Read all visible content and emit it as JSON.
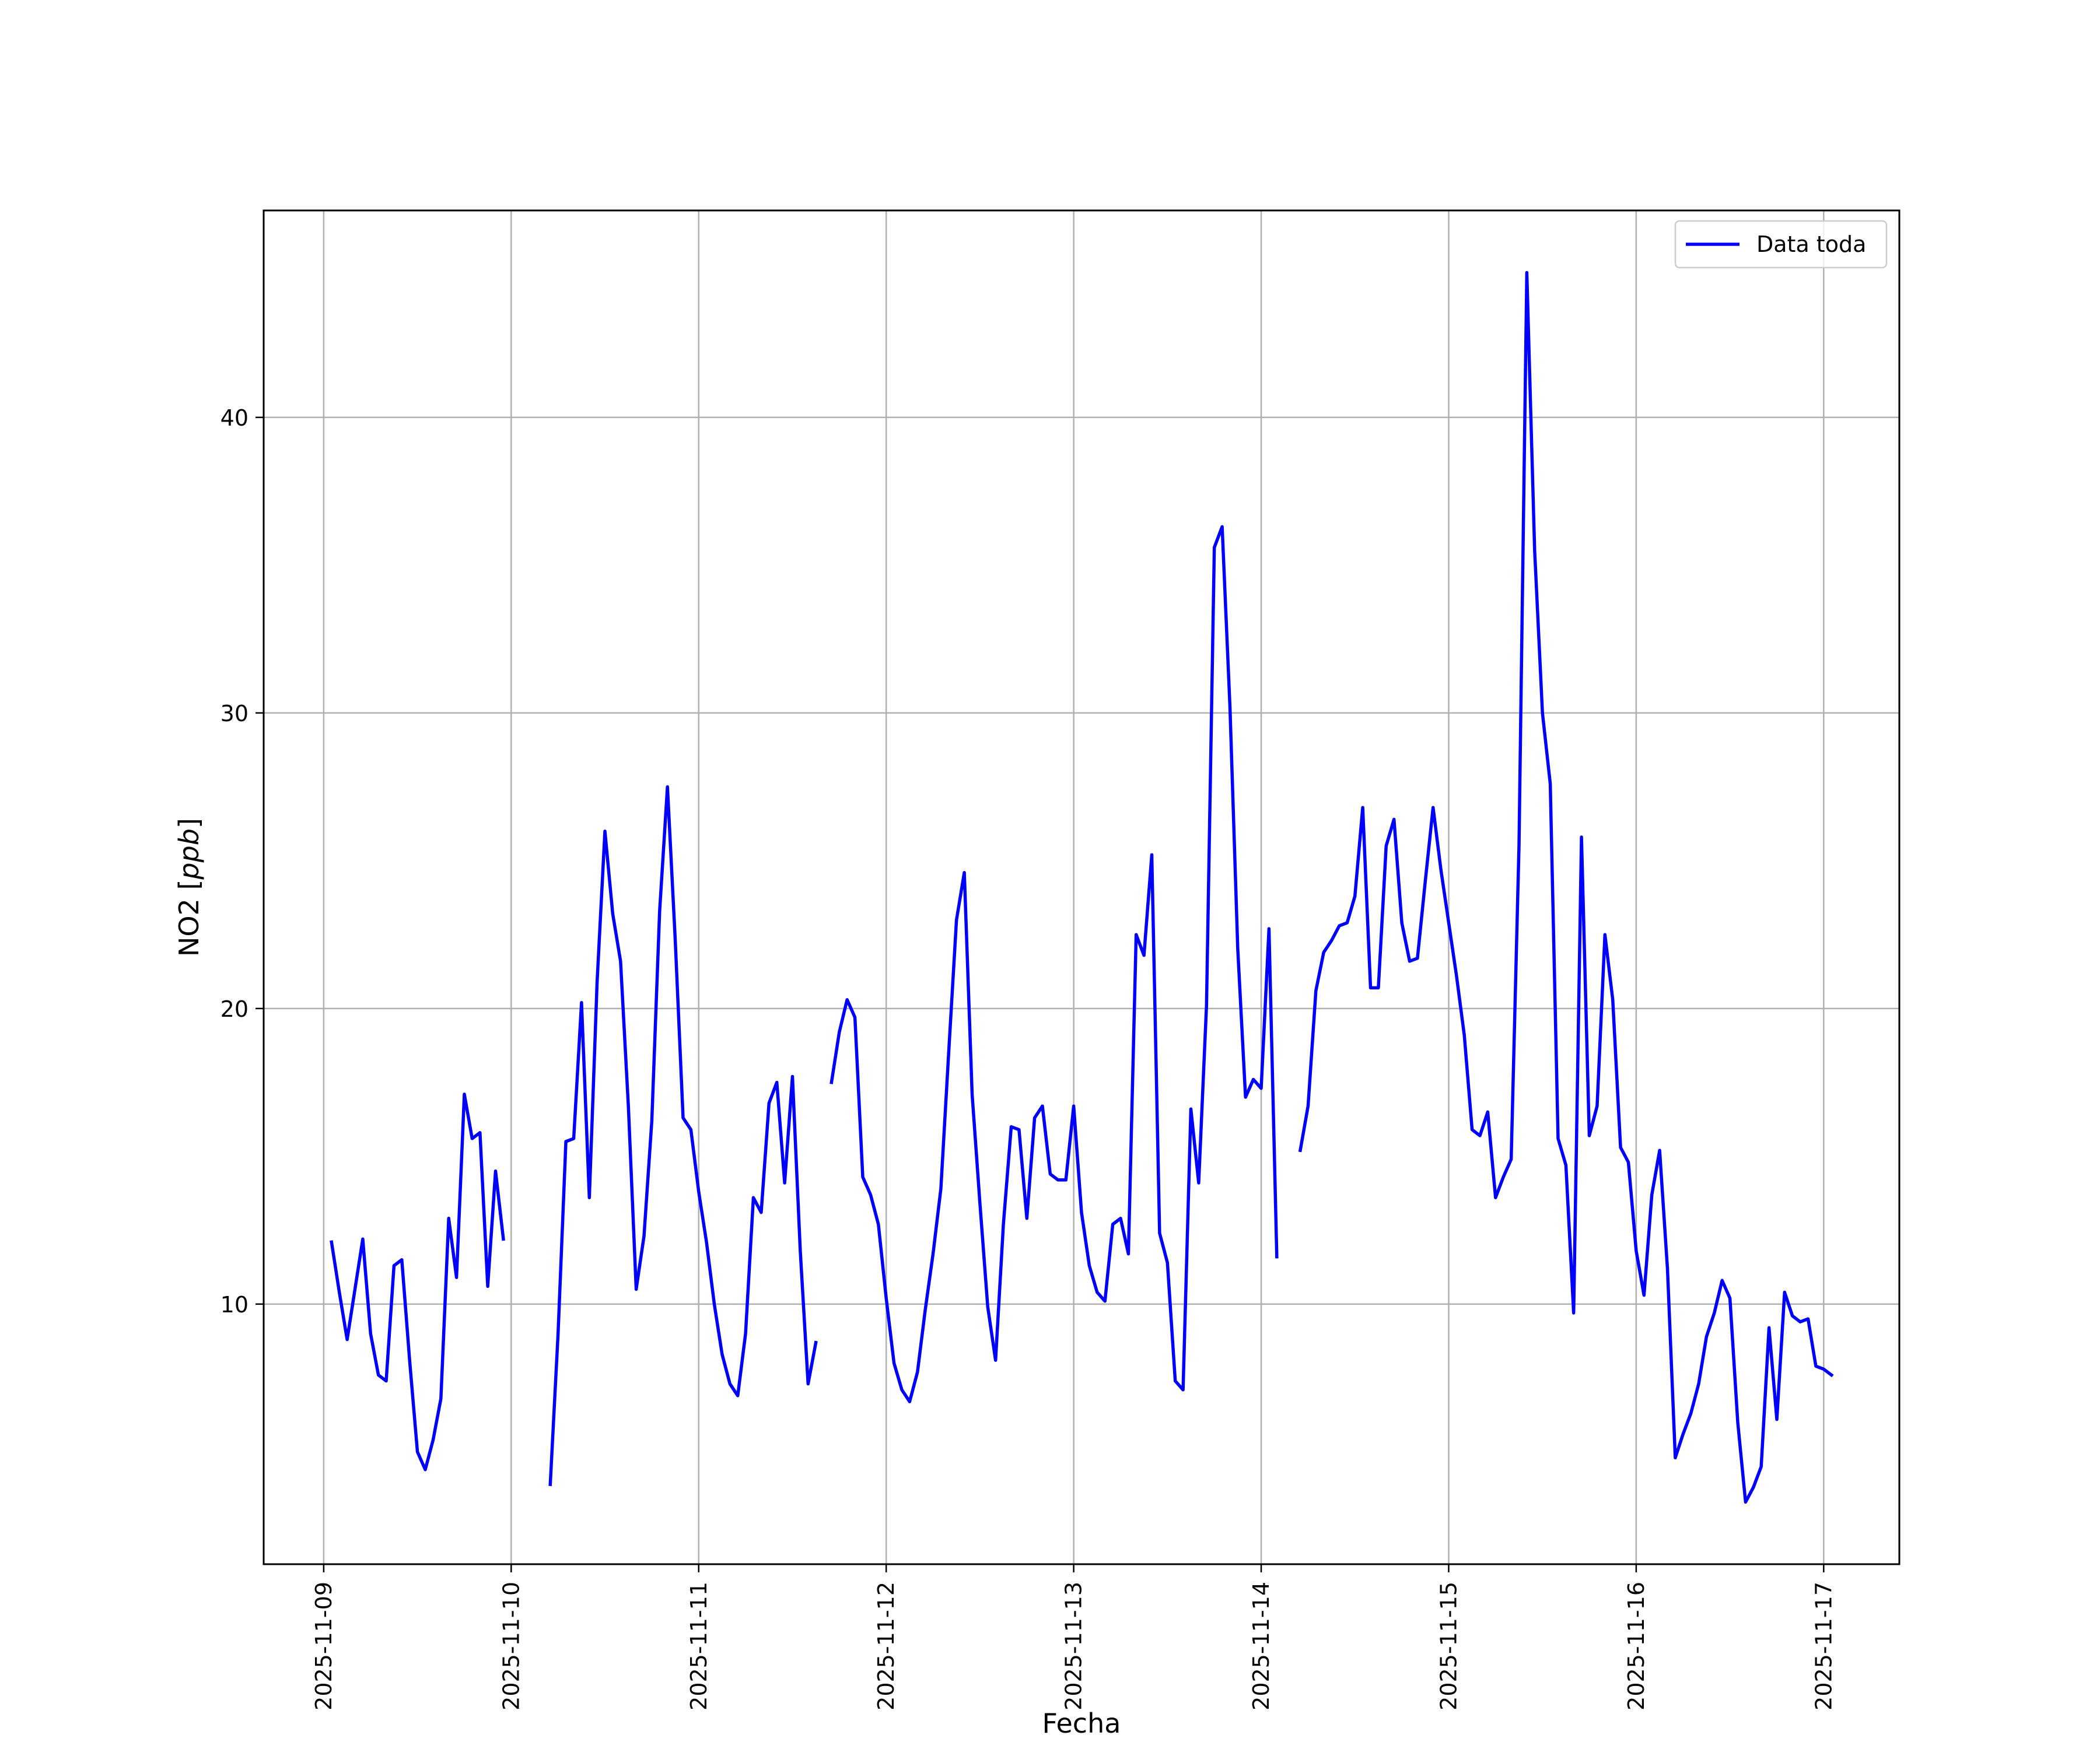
{
  "chart_data": {
    "type": "line",
    "title": "",
    "xlabel": "Fecha",
    "ylabel": "NO2 [ppb]",
    "ylabel_parts": {
      "plain": "NO2 [",
      "italic": "ppb",
      "close": "]"
    },
    "x_ticks": [
      "2025-11-09",
      "2025-11-10",
      "2025-11-11",
      "2025-11-12",
      "2025-11-13",
      "2025-11-14",
      "2025-11-15",
      "2025-11-16",
      "2025-11-17"
    ],
    "y_ticks": [
      10,
      20,
      30,
      40
    ],
    "xlim": [
      "2025-11-08 16:19",
      "2025-11-17 09:41"
    ],
    "ylim": [
      1.2,
      47
    ],
    "grid": true,
    "legend_position": "upper right",
    "colors": {
      "series": "#0000ff",
      "grid": "#b0b0b0",
      "axes": "#000000"
    },
    "series": [
      {
        "name": "Data toda",
        "segments": [
          [
            [
              "2025-11-09 01:00",
              12.1
            ],
            [
              "2025-11-09 02:00",
              10.4
            ],
            [
              "2025-11-09 03:00",
              8.8
            ],
            [
              "2025-11-09 04:00",
              10.5
            ],
            [
              "2025-11-09 05:00",
              12.2
            ],
            [
              "2025-11-09 06:00",
              9.0
            ],
            [
              "2025-11-09 07:00",
              7.6
            ],
            [
              "2025-11-09 08:00",
              7.4
            ],
            [
              "2025-11-09 09:00",
              11.3
            ],
            [
              "2025-11-09 10:00",
              11.5
            ],
            [
              "2025-11-09 11:00",
              8.1
            ],
            [
              "2025-11-09 12:00",
              5.0
            ],
            [
              "2025-11-09 13:00",
              4.4
            ],
            [
              "2025-11-09 14:00",
              5.4
            ],
            [
              "2025-11-09 15:00",
              6.8
            ],
            [
              "2025-11-09 16:00",
              12.9
            ],
            [
              "2025-11-09 17:00",
              10.9
            ],
            [
              "2025-11-09 18:00",
              17.1
            ],
            [
              "2025-11-09 19:00",
              15.6
            ],
            [
              "2025-11-09 20:00",
              15.8
            ],
            [
              "2025-11-09 21:00",
              10.6
            ],
            [
              "2025-11-09 22:00",
              14.5
            ],
            [
              "2025-11-09 23:00",
              12.2
            ]
          ],
          [
            [
              "2025-11-10 05:00",
              3.9
            ],
            [
              "2025-11-10 06:00",
              9.0
            ],
            [
              "2025-11-10 07:00",
              15.5
            ],
            [
              "2025-11-10 08:00",
              15.6
            ],
            [
              "2025-11-10 09:00",
              20.2
            ],
            [
              "2025-11-10 10:00",
              13.6
            ],
            [
              "2025-11-10 11:00",
              20.9
            ],
            [
              "2025-11-10 12:00",
              26.0
            ],
            [
              "2025-11-10 13:00",
              23.2
            ],
            [
              "2025-11-10 14:00",
              21.6
            ],
            [
              "2025-11-10 15:00",
              16.7
            ],
            [
              "2025-11-10 16:00",
              10.5
            ],
            [
              "2025-11-10 17:00",
              12.3
            ],
            [
              "2025-11-10 18:00",
              16.2
            ],
            [
              "2025-11-10 19:00",
              23.3
            ],
            [
              "2025-11-10 20:00",
              27.5
            ],
            [
              "2025-11-10 21:00",
              22.3
            ],
            [
              "2025-11-10 22:00",
              16.3
            ],
            [
              "2025-11-10 23:00",
              15.9
            ],
            [
              "2025-11-11 00:00",
              13.8
            ],
            [
              "2025-11-11 01:00",
              12.1
            ],
            [
              "2025-11-11 02:00",
              10.0
            ],
            [
              "2025-11-11 03:00",
              8.3
            ],
            [
              "2025-11-11 04:00",
              7.3
            ],
            [
              "2025-11-11 05:00",
              6.9
            ],
            [
              "2025-11-11 06:00",
              9.0
            ],
            [
              "2025-11-11 07:00",
              13.6
            ],
            [
              "2025-11-11 08:00",
              13.1
            ],
            [
              "2025-11-11 09:00",
              16.8
            ],
            [
              "2025-11-11 10:00",
              17.5
            ],
            [
              "2025-11-11 11:00",
              14.1
            ],
            [
              "2025-11-11 12:00",
              17.7
            ],
            [
              "2025-11-11 13:00",
              11.8
            ],
            [
              "2025-11-11 14:00",
              7.3
            ],
            [
              "2025-11-11 15:00",
              8.7
            ]
          ],
          [
            [
              "2025-11-11 17:00",
              17.5
            ],
            [
              "2025-11-11 18:00",
              19.2
            ],
            [
              "2025-11-11 19:00",
              20.3
            ],
            [
              "2025-11-11 20:00",
              19.7
            ],
            [
              "2025-11-11 21:00",
              14.3
            ],
            [
              "2025-11-11 22:00",
              13.7
            ],
            [
              "2025-11-11 23:00",
              12.7
            ],
            [
              "2025-11-12 00:00",
              10.2
            ],
            [
              "2025-11-12 01:00",
              8.0
            ],
            [
              "2025-11-12 02:00",
              7.1
            ],
            [
              "2025-11-12 03:00",
              6.7
            ],
            [
              "2025-11-12 04:00",
              7.7
            ],
            [
              "2025-11-12 05:00",
              9.8
            ],
            [
              "2025-11-12 06:00",
              11.7
            ],
            [
              "2025-11-12 07:00",
              13.9
            ],
            [
              "2025-11-12 08:00",
              18.5
            ],
            [
              "2025-11-12 09:00",
              23.0
            ],
            [
              "2025-11-12 10:00",
              24.6
            ],
            [
              "2025-11-12 11:00",
              17.1
            ],
            [
              "2025-11-12 12:00",
              13.4
            ],
            [
              "2025-11-12 13:00",
              9.9
            ],
            [
              "2025-11-12 14:00",
              8.1
            ],
            [
              "2025-11-12 15:00",
              12.7
            ],
            [
              "2025-11-12 16:00",
              16.0
            ],
            [
              "2025-11-12 17:00",
              15.9
            ],
            [
              "2025-11-12 18:00",
              12.9
            ],
            [
              "2025-11-12 19:00",
              16.3
            ],
            [
              "2025-11-12 20:00",
              16.7
            ],
            [
              "2025-11-12 21:00",
              14.4
            ],
            [
              "2025-11-12 22:00",
              14.2
            ],
            [
              "2025-11-12 23:00",
              14.2
            ],
            [
              "2025-11-13 00:00",
              16.7
            ],
            [
              "2025-11-13 01:00",
              13.1
            ],
            [
              "2025-11-13 02:00",
              11.3
            ],
            [
              "2025-11-13 03:00",
              10.4
            ],
            [
              "2025-11-13 04:00",
              10.1
            ],
            [
              "2025-11-13 05:00",
              12.7
            ],
            [
              "2025-11-13 06:00",
              12.9
            ],
            [
              "2025-11-13 07:00",
              11.7
            ],
            [
              "2025-11-13 08:00",
              22.5
            ],
            [
              "2025-11-13 09:00",
              21.8
            ],
            [
              "2025-11-13 10:00",
              25.2
            ],
            [
              "2025-11-13 11:00",
              12.4
            ],
            [
              "2025-11-13 12:00",
              11.4
            ],
            [
              "2025-11-13 13:00",
              7.4
            ],
            [
              "2025-11-13 14:00",
              7.1
            ],
            [
              "2025-11-13 15:00",
              16.6
            ],
            [
              "2025-11-13 16:00",
              14.1
            ],
            [
              "2025-11-13 17:00",
              20.1
            ],
            [
              "2025-11-13 18:00",
              35.6
            ],
            [
              "2025-11-13 19:00",
              36.3
            ],
            [
              "2025-11-13 20:00",
              30.2
            ],
            [
              "2025-11-13 21:00",
              22.0
            ],
            [
              "2025-11-13 22:00",
              17.0
            ],
            [
              "2025-11-13 23:00",
              17.6
            ],
            [
              "2025-11-14 00:00",
              17.3
            ],
            [
              "2025-11-14 01:00",
              22.7
            ],
            [
              "2025-11-14 02:00",
              11.6
            ]
          ],
          [
            [
              "2025-11-14 05:00",
              15.2
            ],
            [
              "2025-11-14 06:00",
              16.7
            ],
            [
              "2025-11-14 07:00",
              20.6
            ],
            [
              "2025-11-14 08:00",
              21.9
            ],
            [
              "2025-11-14 09:00",
              22.3
            ],
            [
              "2025-11-14 10:00",
              22.8
            ],
            [
              "2025-11-14 11:00",
              22.9
            ],
            [
              "2025-11-14 12:00",
              23.8
            ],
            [
              "2025-11-14 13:00",
              26.8
            ],
            [
              "2025-11-14 14:00",
              20.7
            ],
            [
              "2025-11-14 15:00",
              20.7
            ],
            [
              "2025-11-14 16:00",
              25.5
            ],
            [
              "2025-11-14 17:00",
              26.4
            ],
            [
              "2025-11-14 18:00",
              22.9
            ],
            [
              "2025-11-14 19:00",
              21.6
            ],
            [
              "2025-11-14 20:00",
              21.7
            ],
            [
              "2025-11-14 21:00",
              24.3
            ],
            [
              "2025-11-14 22:00",
              26.8
            ],
            [
              "2025-11-14 23:00",
              24.7
            ],
            [
              "2025-11-15 00:00",
              22.9
            ],
            [
              "2025-11-15 01:00",
              21.1
            ],
            [
              "2025-11-15 02:00",
              19.1
            ],
            [
              "2025-11-15 03:00",
              15.9
            ],
            [
              "2025-11-15 04:00",
              15.7
            ],
            [
              "2025-11-15 05:00",
              16.5
            ],
            [
              "2025-11-15 06:00",
              13.6
            ],
            [
              "2025-11-15 07:00",
              14.3
            ],
            [
              "2025-11-15 08:00",
              14.9
            ],
            [
              "2025-11-15 09:00",
              25.5
            ],
            [
              "2025-11-15 10:00",
              44.9
            ],
            [
              "2025-11-15 11:00",
              35.5
            ],
            [
              "2025-11-15 12:00",
              30.0
            ],
            [
              "2025-11-15 13:00",
              27.6
            ],
            [
              "2025-11-15 14:00",
              15.6
            ],
            [
              "2025-11-15 15:00",
              14.7
            ],
            [
              "2025-11-15 16:00",
              9.7
            ],
            [
              "2025-11-15 17:00",
              25.8
            ],
            [
              "2025-11-15 18:00",
              15.7
            ],
            [
              "2025-11-15 19:00",
              16.7
            ],
            [
              "2025-11-15 20:00",
              22.5
            ],
            [
              "2025-11-15 21:00",
              20.3
            ],
            [
              "2025-11-15 22:00",
              15.3
            ],
            [
              "2025-11-15 23:00",
              14.8
            ],
            [
              "2025-11-16 00:00",
              11.8
            ],
            [
              "2025-11-16 01:00",
              10.3
            ],
            [
              "2025-11-16 02:00",
              13.7
            ],
            [
              "2025-11-16 03:00",
              15.2
            ],
            [
              "2025-11-16 04:00",
              11.2
            ],
            [
              "2025-11-16 05:00",
              4.8
            ],
            [
              "2025-11-16 06:00",
              5.6
            ],
            [
              "2025-11-16 07:00",
              6.3
            ],
            [
              "2025-11-16 08:00",
              7.3
            ],
            [
              "2025-11-16 09:00",
              8.9
            ],
            [
              "2025-11-16 10:00",
              9.7
            ],
            [
              "2025-11-16 11:00",
              10.8
            ],
            [
              "2025-11-16 12:00",
              10.2
            ],
            [
              "2025-11-16 13:00",
              6.0
            ],
            [
              "2025-11-16 14:00",
              3.3
            ],
            [
              "2025-11-16 15:00",
              3.8
            ],
            [
              "2025-11-16 16:00",
              4.5
            ],
            [
              "2025-11-16 17:00",
              9.2
            ],
            [
              "2025-11-16 18:00",
              6.1
            ],
            [
              "2025-11-16 19:00",
              10.4
            ],
            [
              "2025-11-16 20:00",
              9.6
            ],
            [
              "2025-11-16 21:00",
              9.4
            ],
            [
              "2025-11-16 22:00",
              9.5
            ],
            [
              "2025-11-16 23:00",
              7.9
            ],
            [
              "2025-11-17 00:00",
              7.8
            ],
            [
              "2025-11-17 01:00",
              7.6
            ]
          ]
        ]
      }
    ]
  }
}
